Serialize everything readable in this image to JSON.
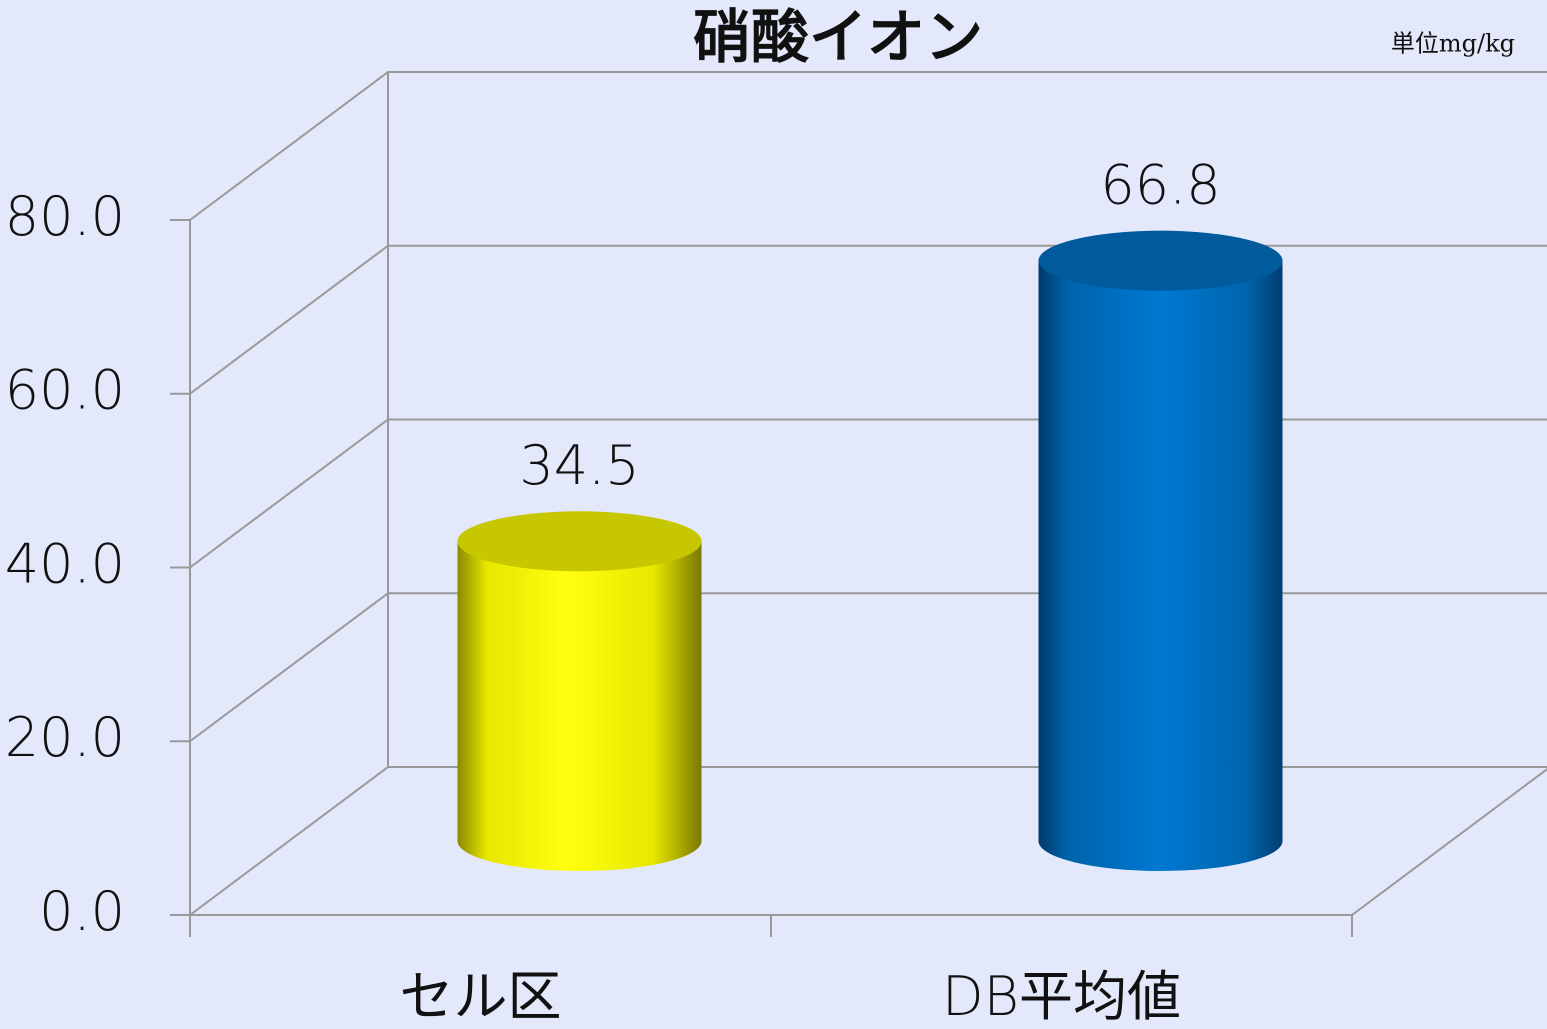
{
  "chart_data": {
    "type": "bar3d-cylinder",
    "title": "硝酸イオン",
    "unit_note": "単位mg/kg",
    "categories": [
      "セル区",
      "DB平均値"
    ],
    "values": [
      34.5,
      66.8
    ],
    "value_labels": [
      "34.5",
      "66.8"
    ],
    "colors": [
      "#ffff00",
      "#0074c8"
    ],
    "ylim": [
      0,
      80
    ],
    "yticks": [
      {
        "value": 0,
        "label": "0.0"
      },
      {
        "value": 20,
        "label": "20.0"
      },
      {
        "value": 40,
        "label": "40.0"
      },
      {
        "value": 60,
        "label": "60.0"
      },
      {
        "value": 80,
        "label": "80.0"
      }
    ],
    "grid": true
  }
}
